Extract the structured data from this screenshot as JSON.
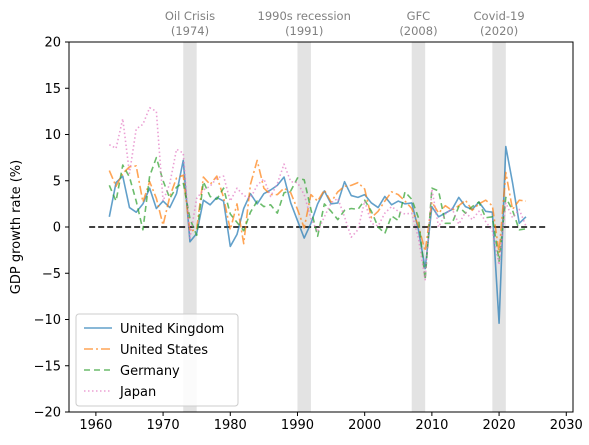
{
  "chart_data": {
    "type": "line",
    "title": "",
    "xlabel": "",
    "ylabel": "GDP growth rate (%)",
    "xlim": [
      1956,
      2031
    ],
    "ylim": [
      -20,
      20
    ],
    "xticks": [
      1960,
      1970,
      1980,
      1990,
      2000,
      2010,
      2020,
      2030
    ],
    "yticks": [
      -20,
      -15,
      -10,
      -5,
      0,
      5,
      10,
      15,
      20
    ],
    "grid": false,
    "legend": "lower-left",
    "zero_line": {
      "y": 0,
      "x_range": [
        1959,
        2027
      ],
      "style": "dashed",
      "color": "#000000"
    },
    "events": [
      {
        "label_line1": "Oil Crisis",
        "label_line2": "(1974)",
        "start": 1973,
        "end": 1975
      },
      {
        "label_line1": "1990s recession",
        "label_line2": "(1991)",
        "start": 1990,
        "end": 1992
      },
      {
        "label_line1": "GFC",
        "label_line2": "(2008)",
        "start": 2007,
        "end": 2009
      },
      {
        "label_line1": "Covid-19",
        "label_line2": "(2020)",
        "start": 2019,
        "end": 2021
      }
    ],
    "series": [
      {
        "name": "United Kingdom",
        "color": "#1f77b4",
        "dash": "",
        "x": [
          1962,
          1963,
          1964,
          1965,
          1966,
          1967,
          1968,
          1969,
          1970,
          1971,
          1972,
          1973,
          1974,
          1975,
          1976,
          1977,
          1978,
          1979,
          1980,
          1981,
          1982,
          1983,
          1984,
          1985,
          1986,
          1987,
          1988,
          1989,
          1990,
          1991,
          1992,
          1993,
          1994,
          1995,
          1996,
          1997,
          1998,
          1999,
          2000,
          2001,
          2002,
          2003,
          2004,
          2005,
          2006,
          2007,
          2008,
          2009,
          2010,
          2011,
          2012,
          2013,
          2014,
          2015,
          2016,
          2017,
          2018,
          2019,
          2020,
          2021,
          2022,
          2023,
          2024
        ],
        "y": [
          1.1,
          4.8,
          5.5,
          2.1,
          1.6,
          2.5,
          4.2,
          2.0,
          2.8,
          2.1,
          3.6,
          7.2,
          -1.6,
          -0.7,
          2.9,
          2.4,
          3.2,
          2.8,
          -2.1,
          -0.8,
          2.0,
          3.6,
          2.5,
          3.6,
          4.0,
          4.5,
          5.4,
          2.6,
          0.7,
          -1.2,
          0.4,
          2.5,
          3.9,
          2.5,
          2.6,
          4.9,
          3.4,
          3.2,
          3.5,
          2.6,
          2.1,
          3.3,
          2.4,
          2.8,
          2.5,
          2.6,
          -0.3,
          -4.5,
          2.2,
          1.1,
          1.5,
          1.9,
          3.2,
          2.2,
          1.9,
          2.7,
          1.7,
          1.6,
          -10.4,
          8.7,
          4.8,
          0.4,
          1.1
        ]
      },
      {
        "name": "United States",
        "color": "#ff7f0e",
        "dash": "9,3,2,3",
        "x": [
          1962,
          1963,
          1964,
          1965,
          1966,
          1967,
          1968,
          1969,
          1970,
          1971,
          1972,
          1973,
          1974,
          1975,
          1976,
          1977,
          1978,
          1979,
          1980,
          1981,
          1982,
          1983,
          1984,
          1985,
          1986,
          1987,
          1988,
          1989,
          1990,
          1991,
          1992,
          1993,
          1994,
          1995,
          1996,
          1997,
          1998,
          1999,
          2000,
          2001,
          2002,
          2003,
          2004,
          2005,
          2006,
          2007,
          2008,
          2009,
          2010,
          2011,
          2012,
          2013,
          2014,
          2015,
          2016,
          2017,
          2018,
          2019,
          2020,
          2021,
          2022,
          2023,
          2024
        ],
        "y": [
          6.1,
          4.4,
          5.8,
          6.5,
          6.6,
          2.7,
          4.9,
          3.1,
          0.2,
          3.3,
          5.3,
          5.6,
          -0.5,
          -0.2,
          5.4,
          4.6,
          5.5,
          3.2,
          -0.3,
          2.5,
          -1.8,
          4.6,
          7.2,
          4.2,
          3.5,
          3.5,
          4.2,
          3.7,
          1.9,
          -0.1,
          3.5,
          2.8,
          4.0,
          2.7,
          3.8,
          4.4,
          4.5,
          4.8,
          4.1,
          1.0,
          1.7,
          2.8,
          3.8,
          3.5,
          2.8,
          2.0,
          0.1,
          -2.6,
          2.7,
          1.5,
          2.3,
          1.8,
          2.3,
          2.9,
          1.8,
          2.5,
          2.9,
          2.3,
          -2.8,
          5.9,
          1.9,
          2.9,
          2.8
        ]
      },
      {
        "name": "Germany",
        "color": "#2ca02c",
        "dash": "6,4",
        "x": [
          1962,
          1963,
          1964,
          1965,
          1966,
          1967,
          1968,
          1969,
          1970,
          1971,
          1972,
          1973,
          1974,
          1975,
          1976,
          1977,
          1978,
          1979,
          1980,
          1981,
          1982,
          1983,
          1984,
          1985,
          1986,
          1987,
          1988,
          1989,
          1990,
          1991,
          1992,
          1993,
          1994,
          1995,
          1996,
          1997,
          1998,
          1999,
          2000,
          2001,
          2002,
          2003,
          2004,
          2005,
          2006,
          2007,
          2008,
          2009,
          2010,
          2011,
          2012,
          2013,
          2014,
          2015,
          2016,
          2017,
          2018,
          2019,
          2020,
          2021,
          2022,
          2023,
          2024
        ],
        "y": [
          4.5,
          2.8,
          6.7,
          5.4,
          2.8,
          -0.3,
          5.5,
          7.5,
          5.0,
          3.1,
          4.3,
          4.8,
          0.9,
          -0.9,
          4.9,
          3.3,
          3.0,
          4.2,
          1.4,
          0.5,
          -0.4,
          1.6,
          2.8,
          2.2,
          2.4,
          1.5,
          3.7,
          3.9,
          5.3,
          5.1,
          1.9,
          -1.0,
          2.5,
          1.7,
          0.8,
          1.8,
          2.0,
          1.9,
          2.9,
          1.7,
          0.0,
          -0.7,
          1.2,
          0.7,
          3.8,
          3.0,
          1.0,
          -5.7,
          4.2,
          3.9,
          0.4,
          0.4,
          2.2,
          1.5,
          2.2,
          2.7,
          1.0,
          1.1,
          -3.7,
          3.2,
          1.8,
          -0.3,
          -0.2
        ]
      },
      {
        "name": "Japan",
        "color": "#e377c2",
        "dash": "1.5,2.5",
        "x": [
          1962,
          1963,
          1964,
          1965,
          1966,
          1967,
          1968,
          1969,
          1970,
          1971,
          1972,
          1973,
          1974,
          1975,
          1976,
          1977,
          1978,
          1979,
          1980,
          1981,
          1982,
          1983,
          1984,
          1985,
          1986,
          1987,
          1988,
          1989,
          1990,
          1991,
          1992,
          1993,
          1994,
          1995,
          1996,
          1997,
          1998,
          1999,
          2000,
          2001,
          2002,
          2003,
          2004,
          2005,
          2006,
          2007,
          2008,
          2009,
          2010,
          2011,
          2012,
          2013,
          2014,
          2015,
          2016,
          2017,
          2018,
          2019,
          2020,
          2021,
          2022,
          2023,
          2024
        ],
        "y": [
          8.9,
          8.5,
          11.7,
          5.8,
          10.6,
          11.1,
          12.9,
          12.5,
          2.8,
          4.7,
          8.4,
          8.0,
          -1.2,
          3.1,
          4.0,
          4.4,
          5.3,
          5.5,
          2.8,
          4.2,
          3.4,
          3.1,
          4.5,
          5.2,
          3.3,
          4.7,
          6.8,
          4.9,
          4.8,
          3.5,
          0.9,
          -0.5,
          1.1,
          2.6,
          3.1,
          1.1,
          -1.1,
          -0.3,
          2.8,
          0.4,
          0.1,
          1.5,
          2.2,
          1.7,
          1.4,
          1.5,
          -1.2,
          -5.7,
          4.1,
          0.0,
          1.4,
          2.0,
          0.3,
          1.6,
          0.8,
          1.7,
          0.6,
          -0.4,
          -4.1,
          2.6,
          1.0,
          1.9,
          0.1
        ]
      }
    ]
  }
}
